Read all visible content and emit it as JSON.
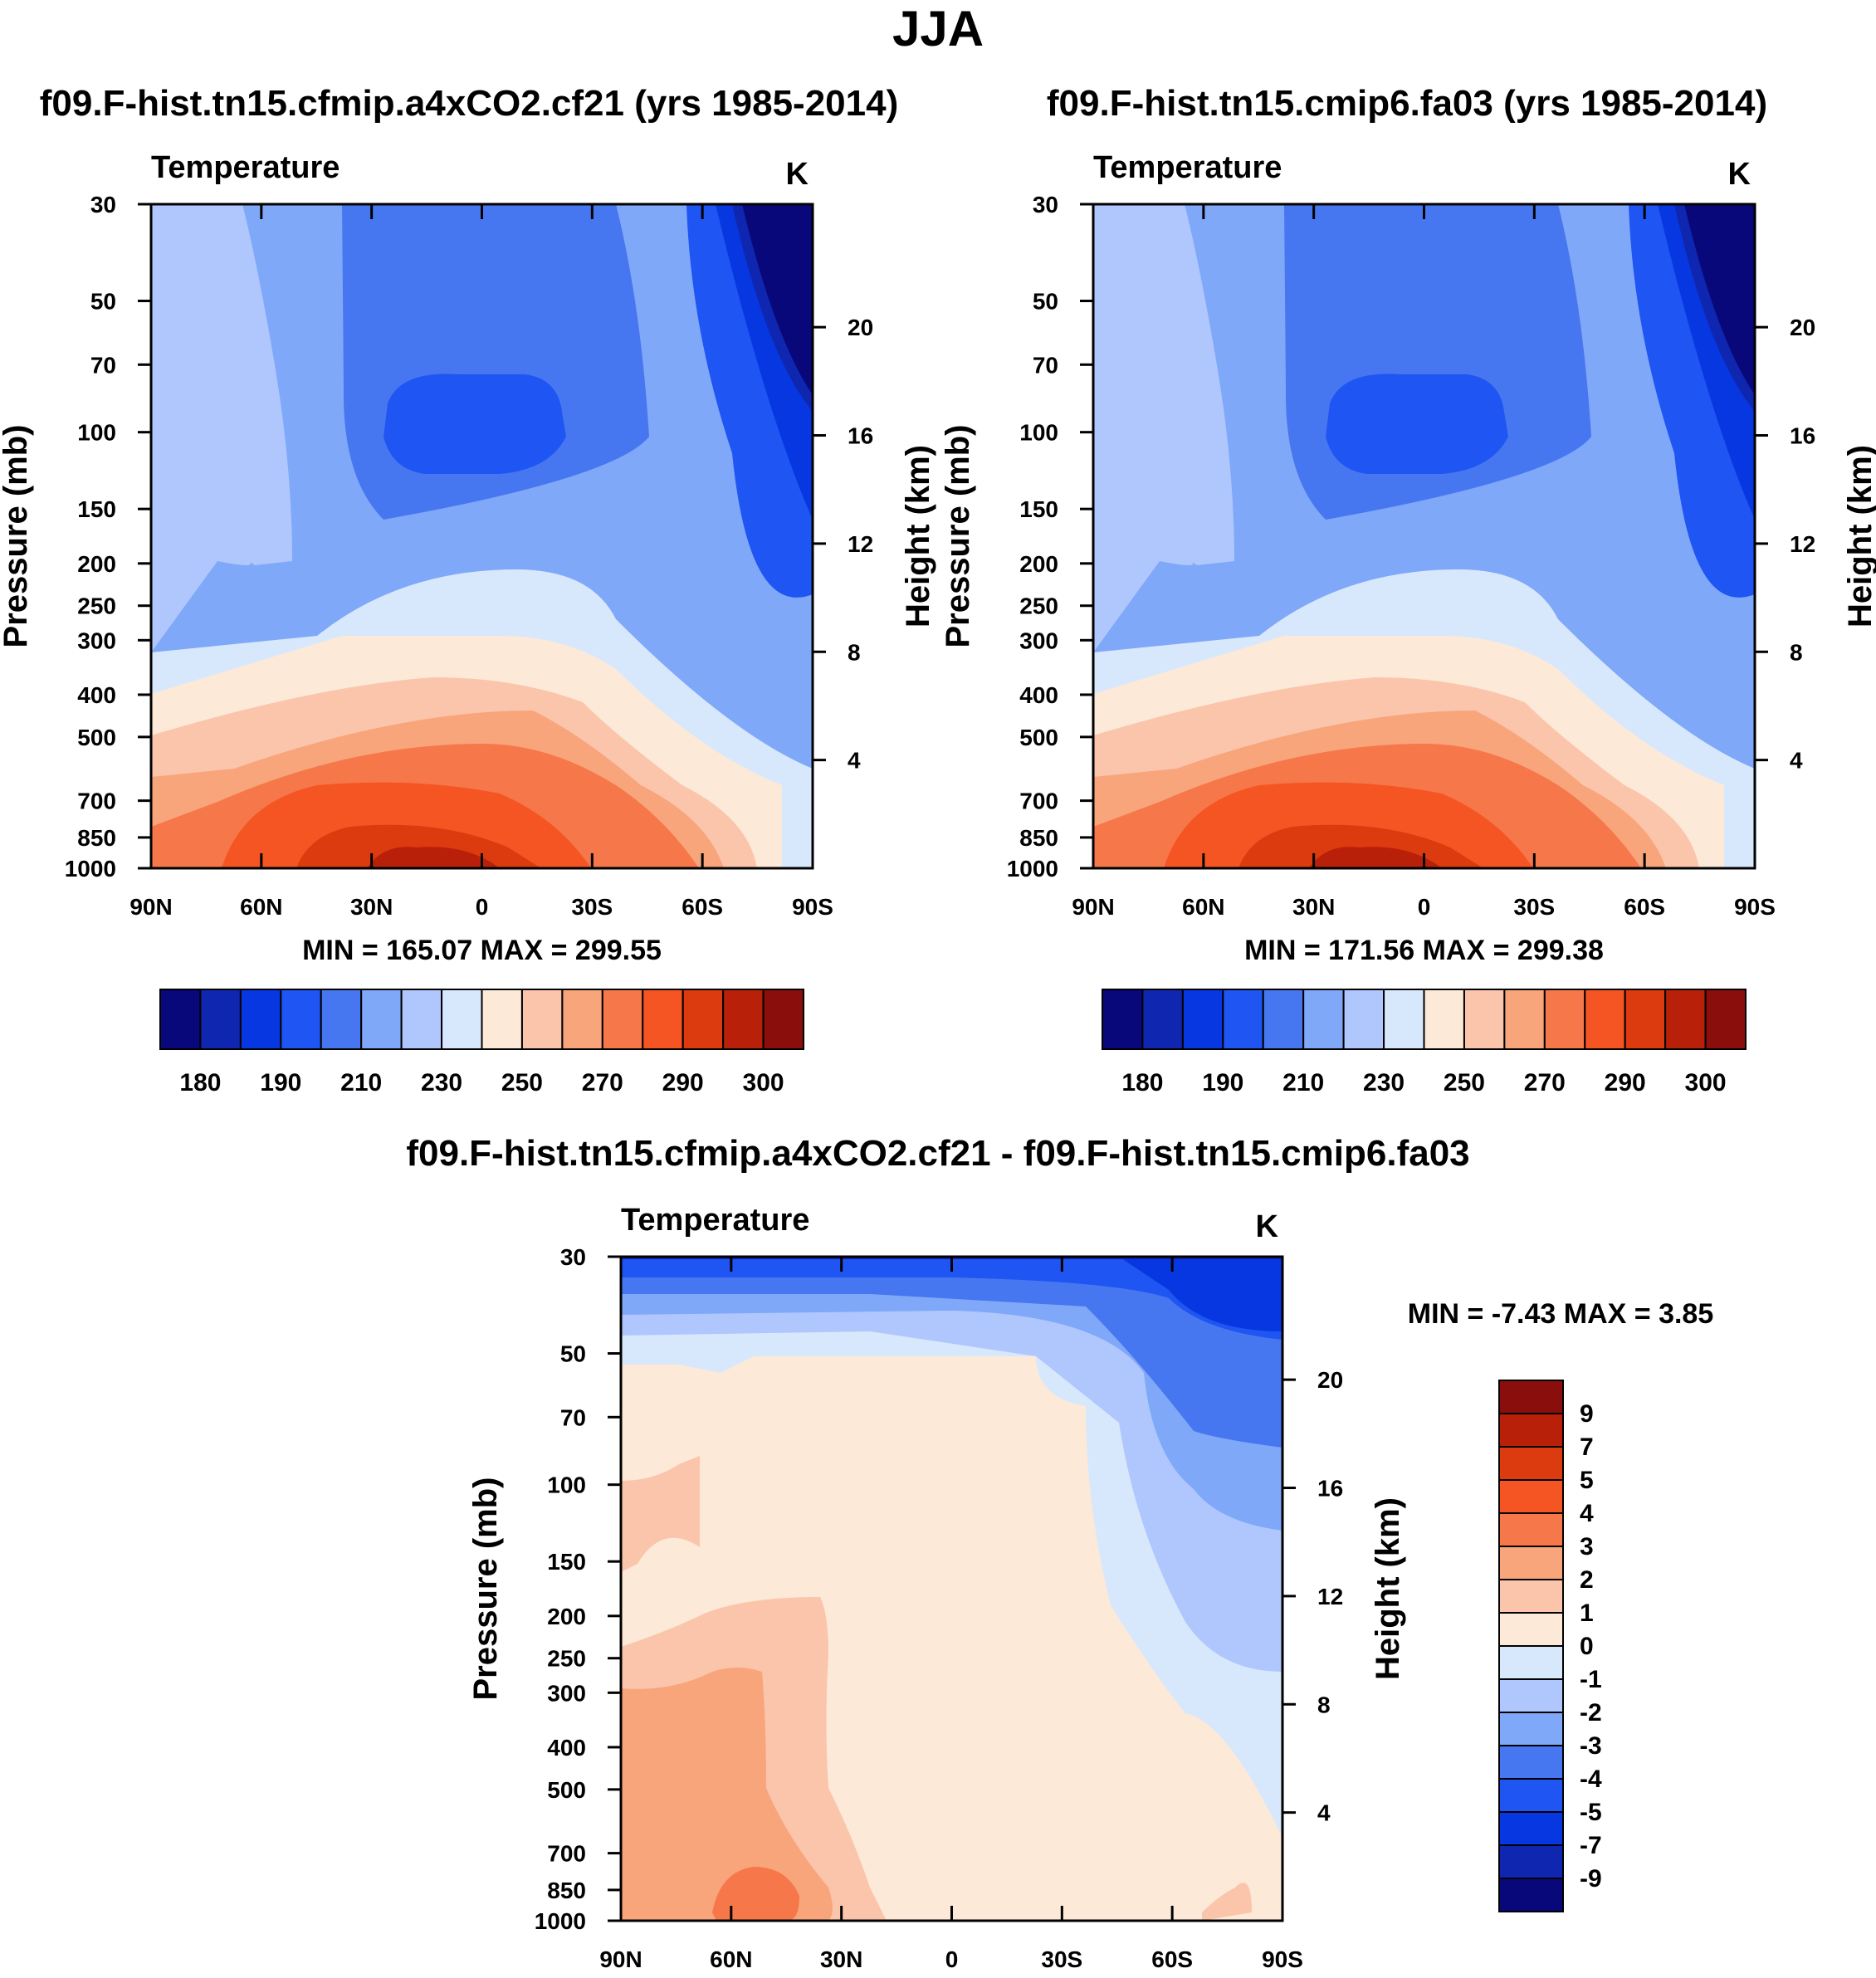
{
  "title": "JJA",
  "colors": {
    "palette17": [
      "#08087a",
      "#0f27b0",
      "#0737e0",
      "#1f55f2",
      "#4777f0",
      "#80a8f8",
      "#afc7fd",
      "#d8e8fc",
      "#fde9d8",
      "#fbc5ac",
      "#f8a57c",
      "#f6774a",
      "#f55423",
      "#dc3a0f",
      "#b8200a",
      "#8a0e0b"
    ],
    "diff15": [
      "#08087a",
      "#0f27b0",
      "#0737e0",
      "#1f55f2",
      "#4777f0",
      "#80a8f8",
      "#afc7fd",
      "#d8e8fc",
      "#fde9d8",
      "#fbc5ac",
      "#f8a57c",
      "#f6774a",
      "#f55423",
      "#dc3a0f",
      "#b8200a",
      "#8a0e0b"
    ]
  },
  "panels": [
    {
      "title": "f09.F-hist.tn15.cfmip.a4xCO2.cf21 (yrs 1985-2014)",
      "var_label": "Temperature",
      "units": "K",
      "min_max": "MIN = 165.07  MAX = 299.55"
    },
    {
      "title": "f09.F-hist.tn15.cmip6.fa03 (yrs 1985-2014)",
      "var_label": "Temperature",
      "units": "K",
      "min_max": "MIN = 171.56  MAX = 299.38"
    },
    {
      "title": "f09.F-hist.tn15.cfmip.a4xCO2.cf21 - f09.F-hist.tn15.cmip6.fa03",
      "var_label": "Temperature",
      "units": "K",
      "min_max": "MIN =  -7.43  MAX =   3.85"
    }
  ],
  "chart_data": [
    {
      "type": "heatmap",
      "title": "f09.F-hist.tn15.cfmip.a4xCO2.cf21 (yrs 1985-2014)",
      "var": "Temperature",
      "units": "K",
      "ylabel": "Pressure (mb)",
      "ylabel_right": "Height (km)",
      "x_ticks": [
        "90N",
        "60N",
        "30N",
        "0",
        "30S",
        "60S",
        "90S"
      ],
      "y_ticks": [
        "30",
        "50",
        "70",
        "100",
        "150",
        "200",
        "250",
        "300",
        "400",
        "500",
        "700",
        "850",
        "1000"
      ],
      "y_right_ticks": [
        "20",
        "16",
        "12",
        "8",
        "4"
      ],
      "colorbar_labels": [
        "180",
        "190",
        "210",
        "230",
        "250",
        "270",
        "290",
        "300"
      ],
      "min": 165.07,
      "max": 299.55
    },
    {
      "type": "heatmap",
      "title": "f09.F-hist.tn15.cmip6.fa03 (yrs 1985-2014)",
      "var": "Temperature",
      "units": "K",
      "ylabel": "Pressure (mb)",
      "ylabel_right": "Height (km)",
      "x_ticks": [
        "90N",
        "60N",
        "30N",
        "0",
        "30S",
        "60S",
        "90S"
      ],
      "y_ticks": [
        "30",
        "50",
        "70",
        "100",
        "150",
        "200",
        "250",
        "300",
        "400",
        "500",
        "700",
        "850",
        "1000"
      ],
      "y_right_ticks": [
        "20",
        "16",
        "12",
        "8",
        "4"
      ],
      "colorbar_labels": [
        "180",
        "190",
        "210",
        "230",
        "250",
        "270",
        "290",
        "300"
      ],
      "min": 171.56,
      "max": 299.38
    },
    {
      "type": "heatmap",
      "title": "f09.F-hist.tn15.cfmip.a4xCO2.cf21 - f09.F-hist.tn15.cmip6.fa03",
      "var": "Temperature",
      "units": "K",
      "ylabel": "Pressure (mb)",
      "ylabel_right": "Height (km)",
      "x_ticks": [
        "90N",
        "60N",
        "30N",
        "0",
        "30S",
        "60S",
        "90S"
      ],
      "y_ticks": [
        "30",
        "50",
        "70",
        "100",
        "150",
        "200",
        "250",
        "300",
        "400",
        "500",
        "700",
        "850",
        "1000"
      ],
      "y_right_ticks": [
        "20",
        "16",
        "12",
        "8",
        "4"
      ],
      "colorbar_labels": [
        "9",
        "7",
        "5",
        "4",
        "3",
        "2",
        "1",
        "0",
        "-1",
        "-2",
        "-3",
        "-4",
        "-5",
        "-7",
        "-9"
      ],
      "min": -7.43,
      "max": 3.85
    }
  ]
}
